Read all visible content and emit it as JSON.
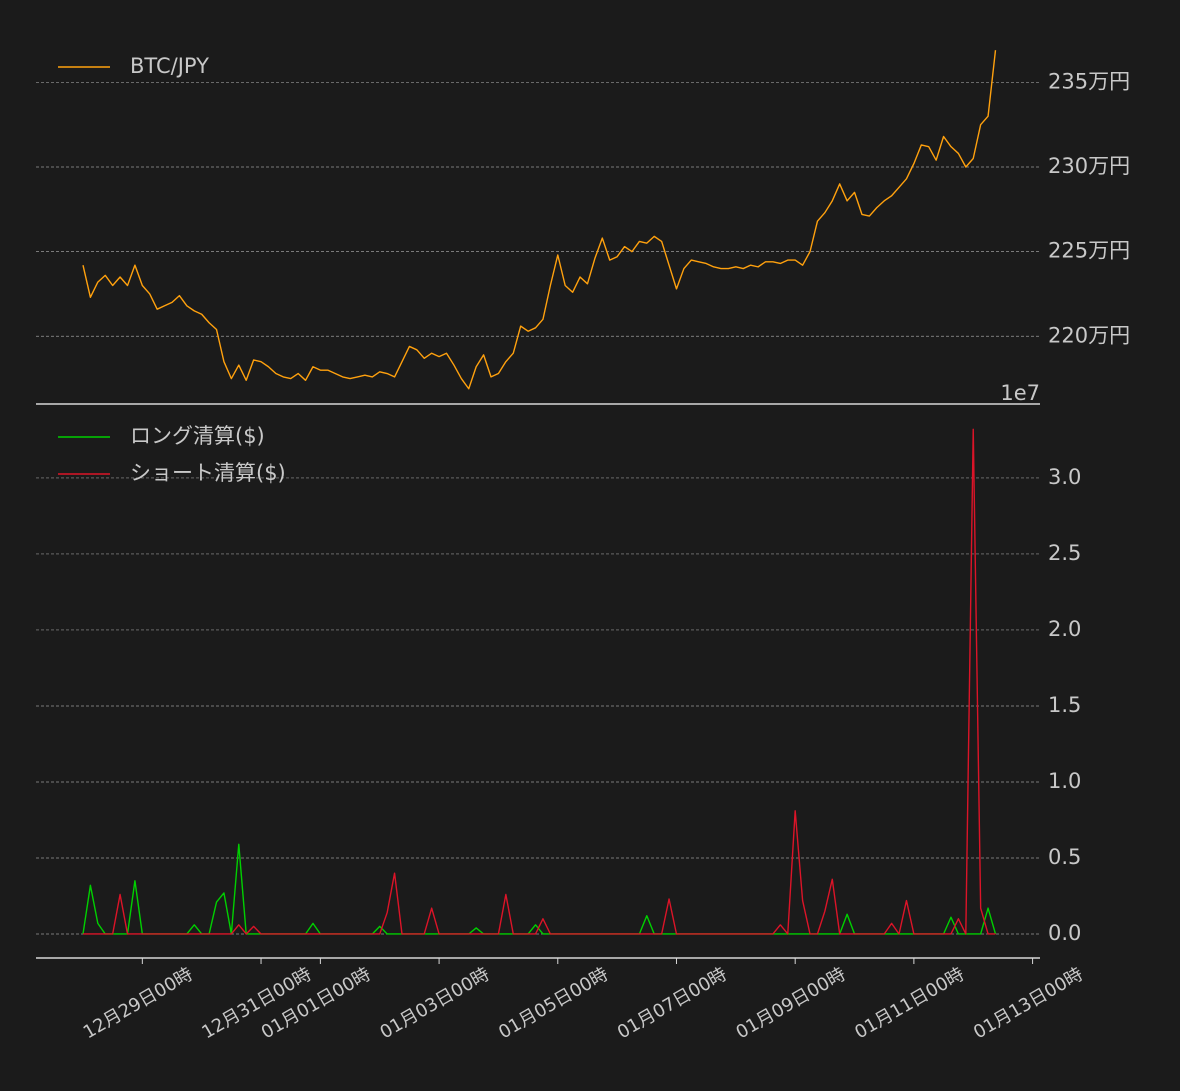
{
  "chart_data": [
    {
      "type": "line",
      "legend": "upper left",
      "grid": true,
      "x": [
        "12-28 00",
        "12-28 03",
        "12-28 06",
        "12-28 09",
        "12-28 12",
        "12-28 15",
        "12-28 18",
        "12-28 21",
        "12-29 00",
        "12-29 03",
        "12-29 06",
        "12-29 09",
        "12-29 12",
        "12-29 15",
        "12-29 18",
        "12-29 21",
        "12-30 00",
        "12-30 03",
        "12-30 06",
        "12-30 09",
        "12-30 12",
        "12-30 15",
        "12-30 18",
        "12-30 21",
        "12-31 00",
        "12-31 03",
        "12-31 06",
        "12-31 09",
        "12-31 12",
        "12-31 15",
        "12-31 18",
        "12-31 21",
        "01-01 00",
        "01-01 03",
        "01-01 06",
        "01-01 09",
        "01-01 12",
        "01-01 15",
        "01-01 18",
        "01-01 21",
        "01-02 00",
        "01-02 03",
        "01-02 06",
        "01-02 09",
        "01-02 12",
        "01-02 15",
        "01-02 18",
        "01-02 21",
        "01-03 00",
        "01-03 03",
        "01-03 06",
        "01-03 09",
        "01-03 12",
        "01-03 15",
        "01-03 18",
        "01-03 21",
        "01-04 00",
        "01-04 03",
        "01-04 06",
        "01-04 09",
        "01-04 12",
        "01-04 15",
        "01-04 18",
        "01-04 21",
        "01-05 00",
        "01-05 03",
        "01-05 06",
        "01-05 09",
        "01-05 12",
        "01-05 15",
        "01-05 18",
        "01-05 21",
        "01-06 00",
        "01-06 03",
        "01-06 06",
        "01-06 09",
        "01-06 12",
        "01-06 15",
        "01-06 18",
        "01-06 21",
        "01-07 00",
        "01-07 03",
        "01-07 06",
        "01-07 09",
        "01-07 12",
        "01-07 15",
        "01-07 18",
        "01-07 21",
        "01-08 00",
        "01-08 03",
        "01-08 06",
        "01-08 09",
        "01-08 12",
        "01-08 15",
        "01-08 18",
        "01-08 21",
        "01-09 00",
        "01-09 03",
        "01-09 06",
        "01-09 09",
        "01-09 12",
        "01-09 15",
        "01-09 18",
        "01-09 21",
        "01-10 00",
        "01-10 03",
        "01-10 06",
        "01-10 09",
        "01-10 12",
        "01-10 15",
        "01-10 18",
        "01-10 21",
        "01-11 00",
        "01-11 03",
        "01-11 06",
        "01-11 09",
        "01-11 12",
        "01-11 15",
        "01-11 18",
        "01-11 21",
        "01-12 00",
        "01-12 03",
        "01-12 06",
        "01-12 09"
      ],
      "xlim": [
        "12-27 05",
        "01-13 03"
      ],
      "ylim": [
        2160000,
        2375000
      ],
      "yticks": [
        {
          "value": 2200000,
          "label": "220万円"
        },
        {
          "value": 2250000,
          "label": "225万円"
        },
        {
          "value": 2300000,
          "label": "230万円"
        },
        {
          "value": 2350000,
          "label": "235万円"
        }
      ],
      "series": [
        {
          "name": "BTC/JPY",
          "color": "#ffa10e",
          "values": [
            2242000,
            2223000,
            2232000,
            2236000,
            2230000,
            2235000,
            2230000,
            2242000,
            2230000,
            2225000,
            2216000,
            2218000,
            2220000,
            2224000,
            2218000,
            2215000,
            2213000,
            2208000,
            2204000,
            2185000,
            2175000,
            2183000,
            2174000,
            2186000,
            2185000,
            2182000,
            2178000,
            2176000,
            2175000,
            2178000,
            2174000,
            2182000,
            2180000,
            2180000,
            2178000,
            2176000,
            2175000,
            2176000,
            2177000,
            2176000,
            2179000,
            2178000,
            2176000,
            2185000,
            2194000,
            2192000,
            2187000,
            2190000,
            2188000,
            2190000,
            2183000,
            2175000,
            2169000,
            2182000,
            2189000,
            2176000,
            2178000,
            2185000,
            2190000,
            2206000,
            2203000,
            2205000,
            2210000,
            2230000,
            2248000,
            2230000,
            2226000,
            2235000,
            2231000,
            2246000,
            2258000,
            2245000,
            2247000,
            2253000,
            2250000,
            2256000,
            2255000,
            2259000,
            2256000,
            2242000,
            2228000,
            2240000,
            2245000,
            2244000,
            2243000,
            2241000,
            2240000,
            2240000,
            2241000,
            2240000,
            2242000,
            2241000,
            2244000,
            2244000,
            2243000,
            2245000,
            2245000,
            2242000,
            2250000,
            2268000,
            2273000,
            2280000,
            2290000,
            2280000,
            2285000,
            2272000,
            2271000,
            2276000,
            2280000,
            2283000,
            2288000,
            2293000,
            2302000,
            2313000,
            2312000,
            2304000,
            2318000,
            2312000,
            2308000,
            2300000,
            2305000,
            2325000,
            2330000,
            2369000
          ]
        }
      ]
    },
    {
      "type": "line",
      "legend": "upper left",
      "grid": true,
      "offset_text": "1e7",
      "x": [
        "12-28 00",
        "12-28 03",
        "12-28 06",
        "12-28 09",
        "12-28 12",
        "12-28 15",
        "12-28 18",
        "12-28 21",
        "12-29 00",
        "12-29 03",
        "12-29 06",
        "12-29 09",
        "12-29 12",
        "12-29 15",
        "12-29 18",
        "12-29 21",
        "12-30 00",
        "12-30 03",
        "12-30 06",
        "12-30 09",
        "12-30 12",
        "12-30 15",
        "12-30 18",
        "12-30 21",
        "12-31 00",
        "12-31 03",
        "12-31 06",
        "12-31 09",
        "12-31 12",
        "12-31 15",
        "12-31 18",
        "12-31 21",
        "01-01 00",
        "01-01 03",
        "01-01 06",
        "01-01 09",
        "01-01 12",
        "01-01 15",
        "01-01 18",
        "01-01 21",
        "01-02 00",
        "01-02 03",
        "01-02 06",
        "01-02 09",
        "01-02 12",
        "01-02 15",
        "01-02 18",
        "01-02 21",
        "01-03 00",
        "01-03 03",
        "01-03 06",
        "01-03 09",
        "01-03 12",
        "01-03 15",
        "01-03 18",
        "01-03 21",
        "01-04 00",
        "01-04 03",
        "01-04 06",
        "01-04 09",
        "01-04 12",
        "01-04 15",
        "01-04 18",
        "01-04 21",
        "01-05 00",
        "01-05 03",
        "01-05 06",
        "01-05 09",
        "01-05 12",
        "01-05 15",
        "01-05 18",
        "01-05 21",
        "01-06 00",
        "01-06 03",
        "01-06 06",
        "01-06 09",
        "01-06 12",
        "01-06 15",
        "01-06 18",
        "01-06 21",
        "01-07 00",
        "01-07 03",
        "01-07 06",
        "01-07 09",
        "01-07 12",
        "01-07 15",
        "01-07 18",
        "01-07 21",
        "01-08 00",
        "01-08 03",
        "01-08 06",
        "01-08 09",
        "01-08 12",
        "01-08 15",
        "01-08 18",
        "01-08 21",
        "01-09 00",
        "01-09 03",
        "01-09 06",
        "01-09 09",
        "01-09 12",
        "01-09 15",
        "01-09 18",
        "01-09 21",
        "01-10 00",
        "01-10 03",
        "01-10 06",
        "01-10 09",
        "01-10 12",
        "01-10 15",
        "01-10 18",
        "01-10 21",
        "01-11 00",
        "01-11 03",
        "01-11 06",
        "01-11 09",
        "01-11 12",
        "01-11 15",
        "01-11 18",
        "01-11 21",
        "01-12 00",
        "01-12 03",
        "01-12 06",
        "01-12 09"
      ],
      "xlim": [
        "12-27 05",
        "01-13 03"
      ],
      "xticks": [
        {
          "value": "12-29 00",
          "label": "12月29日00時"
        },
        {
          "value": "12-31 00",
          "label": "12月31日00時"
        },
        {
          "value": "01-01 00",
          "label": "01月01日00時"
        },
        {
          "value": "01-03 00",
          "label": "01月03日00時"
        },
        {
          "value": "01-05 00",
          "label": "01月05日00時"
        },
        {
          "value": "01-07 00",
          "label": "01月07日00時"
        },
        {
          "value": "01-09 00",
          "label": "01月09日00時"
        },
        {
          "value": "01-11 00",
          "label": "01月11日00時"
        },
        {
          "value": "01-13 00",
          "label": "01月13日00時"
        }
      ],
      "ylim": [
        -0.158,
        3.447
      ],
      "yticks": [
        {
          "value": 0,
          "label": "0.0"
        },
        0.5,
        {
          "value": 1,
          "label": "1.0"
        },
        1.5,
        {
          "value": 2,
          "label": "2.0"
        },
        2.5,
        {
          "value": 3,
          "label": "3.0"
        }
      ],
      "series": [
        {
          "name": "ロング清算($)",
          "color": "#00d000",
          "values": [
            0,
            0.32,
            0.07,
            0,
            0,
            0,
            0,
            0.35,
            0,
            0,
            0,
            0,
            0,
            0,
            0,
            0.06,
            0,
            0,
            0.21,
            0.27,
            0,
            0.59,
            0,
            0,
            0,
            0,
            0,
            0,
            0,
            0,
            0,
            0.07,
            0,
            0,
            0,
            0,
            0,
            0,
            0,
            0,
            0.05,
            0,
            0,
            0,
            0,
            0,
            0,
            0,
            0,
            0,
            0,
            0,
            0,
            0.04,
            0,
            0,
            0,
            0,
            0,
            0,
            0,
            0.06,
            0,
            0,
            0,
            0,
            0,
            0,
            0,
            0,
            0,
            0,
            0,
            0,
            0,
            0,
            0.12,
            0,
            0,
            0,
            0,
            0,
            0,
            0,
            0,
            0,
            0,
            0,
            0,
            0,
            0,
            0,
            0,
            0,
            0,
            0,
            0,
            0,
            0,
            0,
            0,
            0,
            0,
            0.13,
            0,
            0,
            0,
            0,
            0,
            0,
            0,
            0,
            0,
            0,
            0,
            0,
            0,
            0.11,
            0,
            0,
            0,
            0,
            0.17,
            0
          ]
        },
        {
          "name": "ショート清算($)",
          "color": "#dc1428",
          "values": [
            0,
            0,
            0,
            0,
            0,
            0.26,
            0,
            0,
            0,
            0,
            0,
            0,
            0,
            0,
            0,
            0,
            0,
            0,
            0,
            0,
            0,
            0.06,
            0,
            0.05,
            0,
            0,
            0,
            0,
            0,
            0,
            0,
            0,
            0,
            0,
            0,
            0,
            0,
            0,
            0,
            0,
            0,
            0.14,
            0.4,
            0,
            0,
            0,
            0,
            0.17,
            0,
            0,
            0,
            0,
            0,
            0,
            0,
            0,
            0,
            0.26,
            0,
            0,
            0,
            0,
            0.1,
            0,
            0,
            0,
            0,
            0,
            0,
            0,
            0,
            0,
            0,
            0,
            0,
            0,
            0,
            0,
            0,
            0.23,
            0,
            0,
            0,
            0,
            0,
            0,
            0,
            0,
            0,
            0,
            0,
            0,
            0,
            0,
            0.06,
            0,
            0.81,
            0.22,
            0,
            0,
            0.15,
            0.36,
            0,
            0,
            0,
            0,
            0,
            0,
            0,
            0.07,
            0,
            0.22,
            0,
            0,
            0,
            0,
            0,
            0,
            0.1,
            0,
            3.32,
            0.17,
            0,
            0
          ]
        }
      ]
    }
  ]
}
